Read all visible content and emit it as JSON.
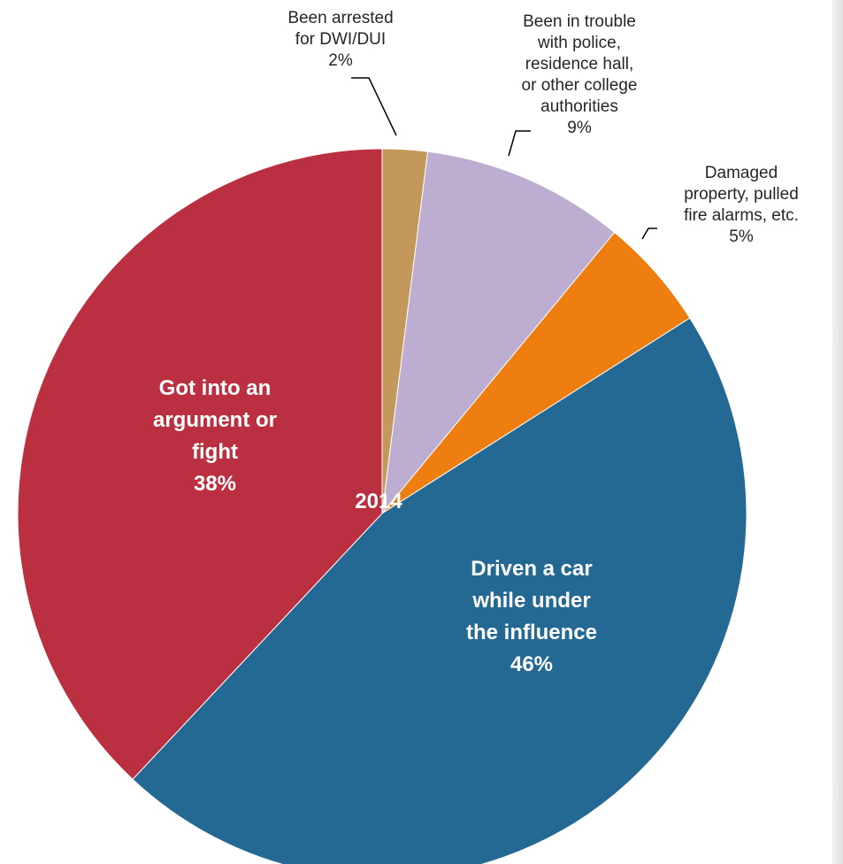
{
  "chart_data": {
    "type": "pie",
    "center_label": "2014",
    "legend": "none",
    "slices": [
      {
        "label_lines": [
          "Been arrested",
          "for DWI/DUI"
        ],
        "value": 2,
        "pct_label": "2%",
        "color": "#c4975a",
        "label_placement": "outside"
      },
      {
        "label_lines": [
          "Been in trouble",
          "with police,",
          "residence hall,",
          "or other college",
          "authorities"
        ],
        "value": 9,
        "pct_label": "9%",
        "color": "#bcadd1",
        "label_placement": "outside"
      },
      {
        "label_lines": [
          "Damaged",
          "property, pulled",
          "fire alarms, etc."
        ],
        "value": 5,
        "pct_label": "5%",
        "color": "#ee7e0f",
        "label_placement": "outside"
      },
      {
        "label_lines": [
          "Driven a car",
          "while under",
          "the influence"
        ],
        "value": 46,
        "pct_label": "46%",
        "color": "#246994",
        "label_placement": "inside"
      },
      {
        "label_lines": [
          "Got into an",
          "argument or",
          "fight"
        ],
        "value": 38,
        "pct_label": "38%",
        "color": "#bb3041",
        "label_placement": "inside"
      }
    ]
  }
}
